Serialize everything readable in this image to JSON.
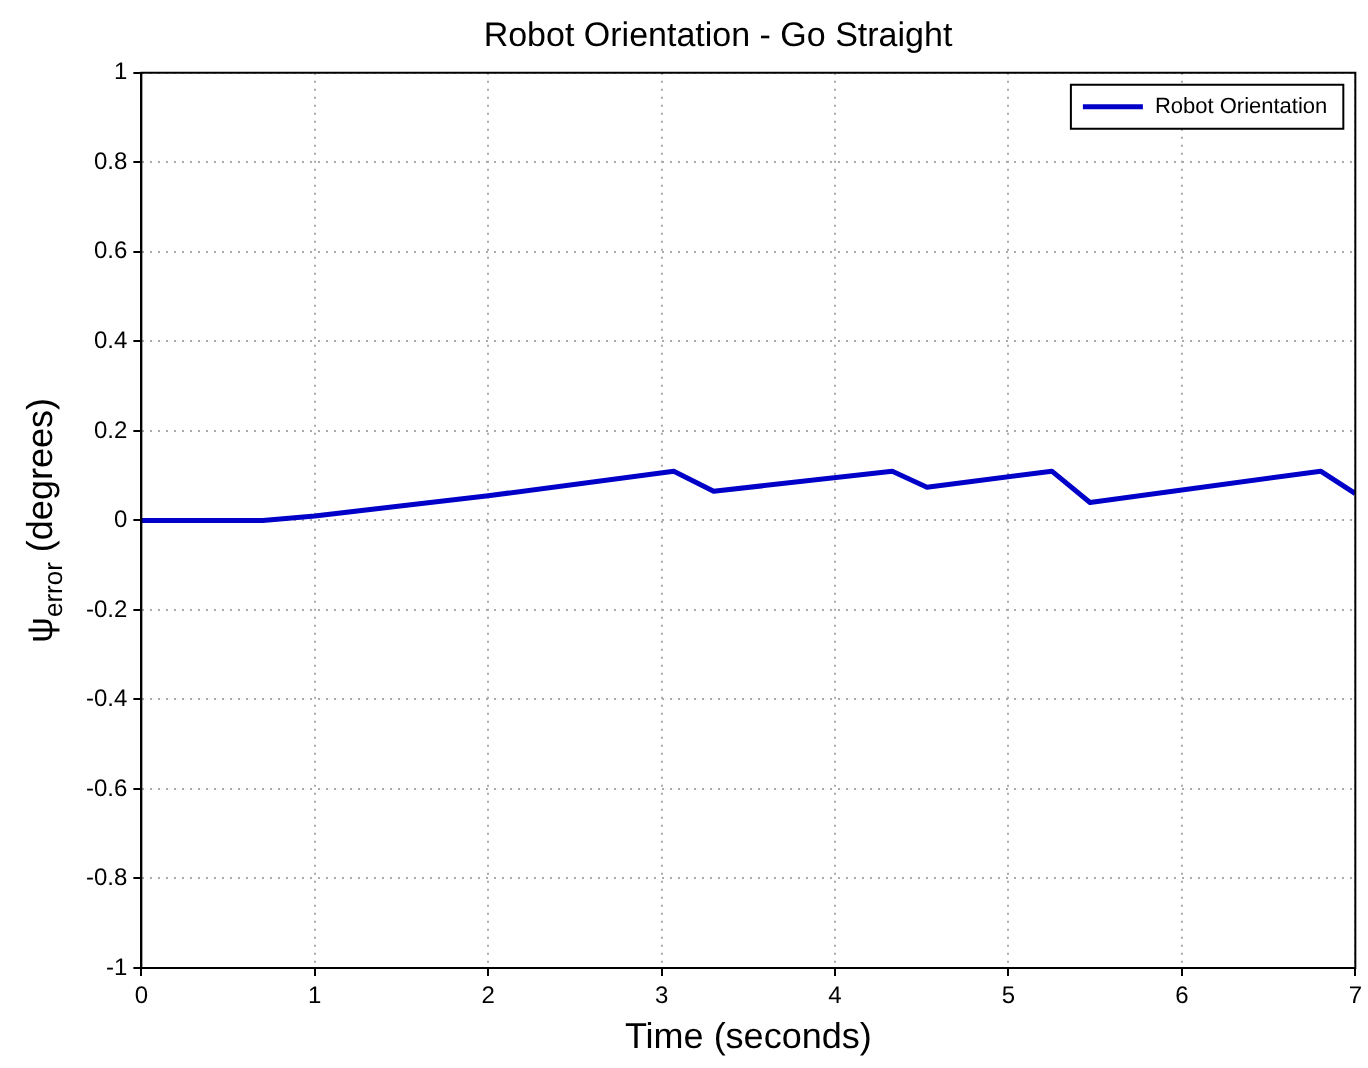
{
  "chart_data": {
    "type": "line",
    "title": "Robot Orientation - Go Straight",
    "xlabel": "Time (seconds)",
    "ylabel": "ψ$_{error}$ (degrees)",
    "x": [
      0,
      0.7,
      1,
      2,
      3.07,
      3.3,
      4.33,
      4.53,
      5.25,
      5.47,
      6.8,
      7
    ],
    "series": [
      {
        "name": "Robot Orientation",
        "color": "#0000c8",
        "values": [
          0,
          0,
          0.01,
          0.055,
          0.11,
          0.065,
          0.11,
          0.074,
          0.11,
          0.04,
          0.11,
          0.06
        ]
      }
    ],
    "xlim": [
      0,
      7
    ],
    "xticks": [
      0,
      1,
      2,
      3,
      4,
      5,
      6,
      7
    ],
    "ylim": [
      -1,
      1
    ],
    "yticks": [
      -1,
      -0.8,
      -0.6,
      -0.4,
      -0.2,
      0,
      0.2,
      0.4,
      0.6,
      0.8,
      1
    ],
    "grid": true,
    "legend": "top right",
    "marker": "none",
    "line_style": "solid"
  }
}
